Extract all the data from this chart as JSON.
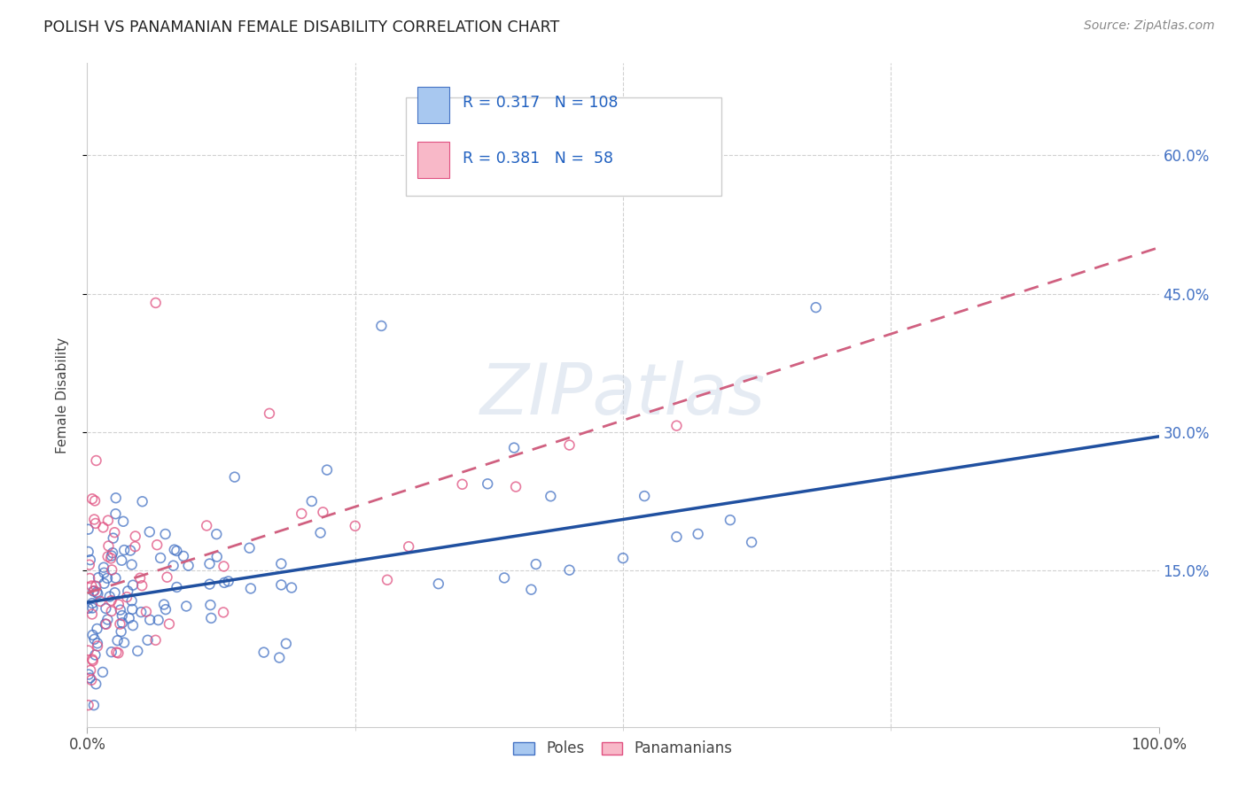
{
  "title": "POLISH VS PANAMANIAN FEMALE DISABILITY CORRELATION CHART",
  "source": "Source: ZipAtlas.com",
  "ylabel": "Female Disability",
  "xlim": [
    0.0,
    1.0
  ],
  "ylim": [
    -0.02,
    0.7
  ],
  "yticks": [
    0.15,
    0.3,
    0.45,
    0.6
  ],
  "ytick_labels": [
    "15.0%",
    "30.0%",
    "45.0%",
    "60.0%"
  ],
  "poles_face_color": "#A8C8F0",
  "poles_edge_color": "#4472C4",
  "panamanians_face_color": "#F8B8C8",
  "panamanians_edge_color": "#E05080",
  "poles_line_color": "#2050A0",
  "panamanians_line_color": "#D06080",
  "R_poles": 0.317,
  "N_poles": 108,
  "R_panamanians": 0.381,
  "N_panamanians": 58,
  "legend_label_poles": "Poles",
  "legend_label_panamanians": "Panamanians",
  "watermark": "ZIPatlas",
  "background_color": "#ffffff",
  "ytick_color": "#4472C4",
  "poles_line_y0": 0.115,
  "poles_line_y1": 0.295,
  "pana_line_y0": 0.125,
  "pana_line_y1": 0.5
}
